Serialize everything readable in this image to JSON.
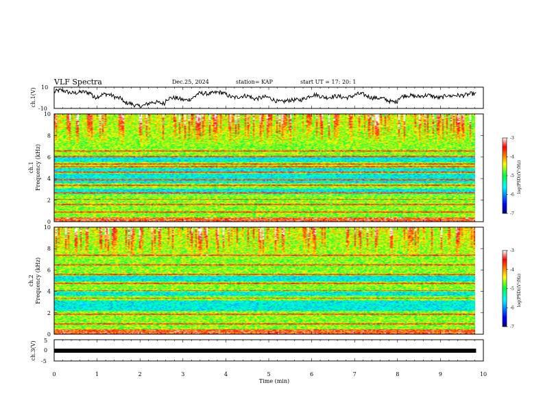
{
  "header": {
    "title": "VLF Spectra",
    "date": "Dec.25, 2024",
    "station": "station= KAP",
    "start": "start  UT  =    17: 20: 1"
  },
  "chart_data": [
    {
      "id": "ch1_waveform",
      "type": "line",
      "ylabel": "ch.1(V)",
      "ylim": [
        -10,
        10
      ],
      "ytick_labels": [
        "-10",
        "10"
      ],
      "x_range_min": [
        0,
        9.83
      ],
      "trace": "noisy voltage envelope, roughly 0 to +8 V at start, dips near -5 V around 1-2.5 min, oscillates around -2 to +4 V thereafter"
    },
    {
      "id": "ch1_spectrogram",
      "type": "heatmap",
      "ylabel": "ch.1\nFrequency (kHz)",
      "ylim": [
        0,
        10
      ],
      "ytick_labels": [
        "0",
        "2",
        "4",
        "6",
        "8",
        "10"
      ],
      "colorbar": {
        "label": "log(PSD)(V²/Hz)",
        "range": [
          -7,
          -3
        ],
        "tick_labels": [
          "-3",
          "-4",
          "-5",
          "-6",
          "-7"
        ]
      },
      "bands_khz": [
        0.3,
        0.9,
        1.6,
        2.1,
        2.7,
        3.4,
        3.9,
        4.6,
        5.1,
        5.4,
        6.1,
        6.6
      ],
      "quiet_bands_khz": [
        [
          2.6,
          3.1
        ],
        [
          3.6,
          4.5
        ],
        [
          4.7,
          5.0
        ],
        [
          5.6,
          6.0
        ]
      ],
      "broadband_above_khz": 7
    },
    {
      "id": "ch2_spectrogram",
      "type": "heatmap",
      "ylabel": "ch.2\nFrequency (kHz)",
      "ylim": [
        0,
        10
      ],
      "ytick_labels": [
        "0",
        "2",
        "4",
        "6",
        "8",
        "10"
      ],
      "colorbar": {
        "label": "log(PSD)(V²/Hz)",
        "range": [
          -7,
          -3
        ],
        "tick_labels": [
          "-3",
          "-4",
          "-5",
          "-6",
          "-7"
        ]
      },
      "bands_khz": [
        0.4,
        1.0,
        1.9,
        3.4,
        4.1,
        4.8,
        5.6,
        6.5,
        7.4
      ],
      "quiet_bands_khz": [
        [
          2.2,
          3.2
        ],
        [
          3.6,
          4.0
        ],
        [
          5.0,
          5.5
        ]
      ],
      "broadband_above_khz": 7
    },
    {
      "id": "ch3_waveform",
      "type": "line",
      "ylabel": "ch.3(V)",
      "ylim": [
        -5,
        5
      ],
      "ytick_labels": [
        "-5",
        "0",
        "5"
      ],
      "trace": "thick flat band near -1 V for full duration"
    }
  ],
  "xaxis": {
    "label": "Time (min)",
    "xlim": [
      0,
      10
    ],
    "tick_labels": [
      "0",
      "1",
      "2",
      "3",
      "4",
      "5",
      "6",
      "7",
      "8",
      "9",
      "10"
    ],
    "data_end": 9.83
  }
}
